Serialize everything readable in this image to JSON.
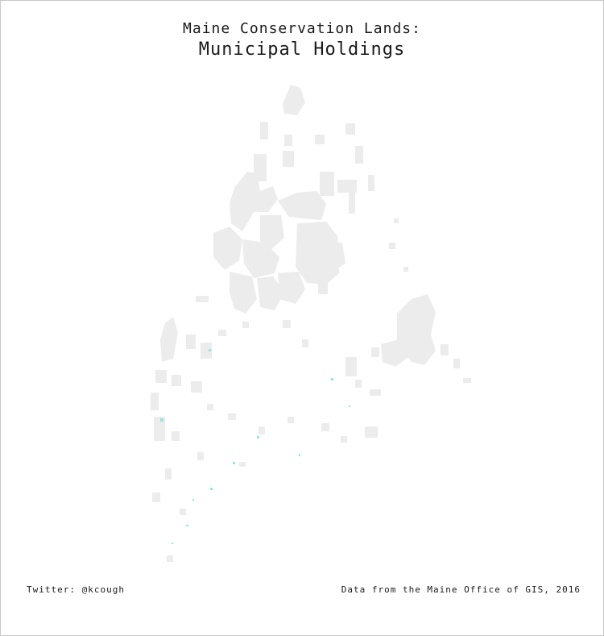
{
  "title": {
    "line1": "Maine Conservation Lands:",
    "line2": "Municipal Holdings"
  },
  "footer": {
    "credit": "Twitter: @kcough",
    "source": "Data from the Maine Office of GIS, 2016"
  },
  "colors": {
    "background": "#ffffff",
    "conservation_land": "#ececec",
    "municipal_holding": "#8fe8e0",
    "text": "#1a1a1a"
  }
}
